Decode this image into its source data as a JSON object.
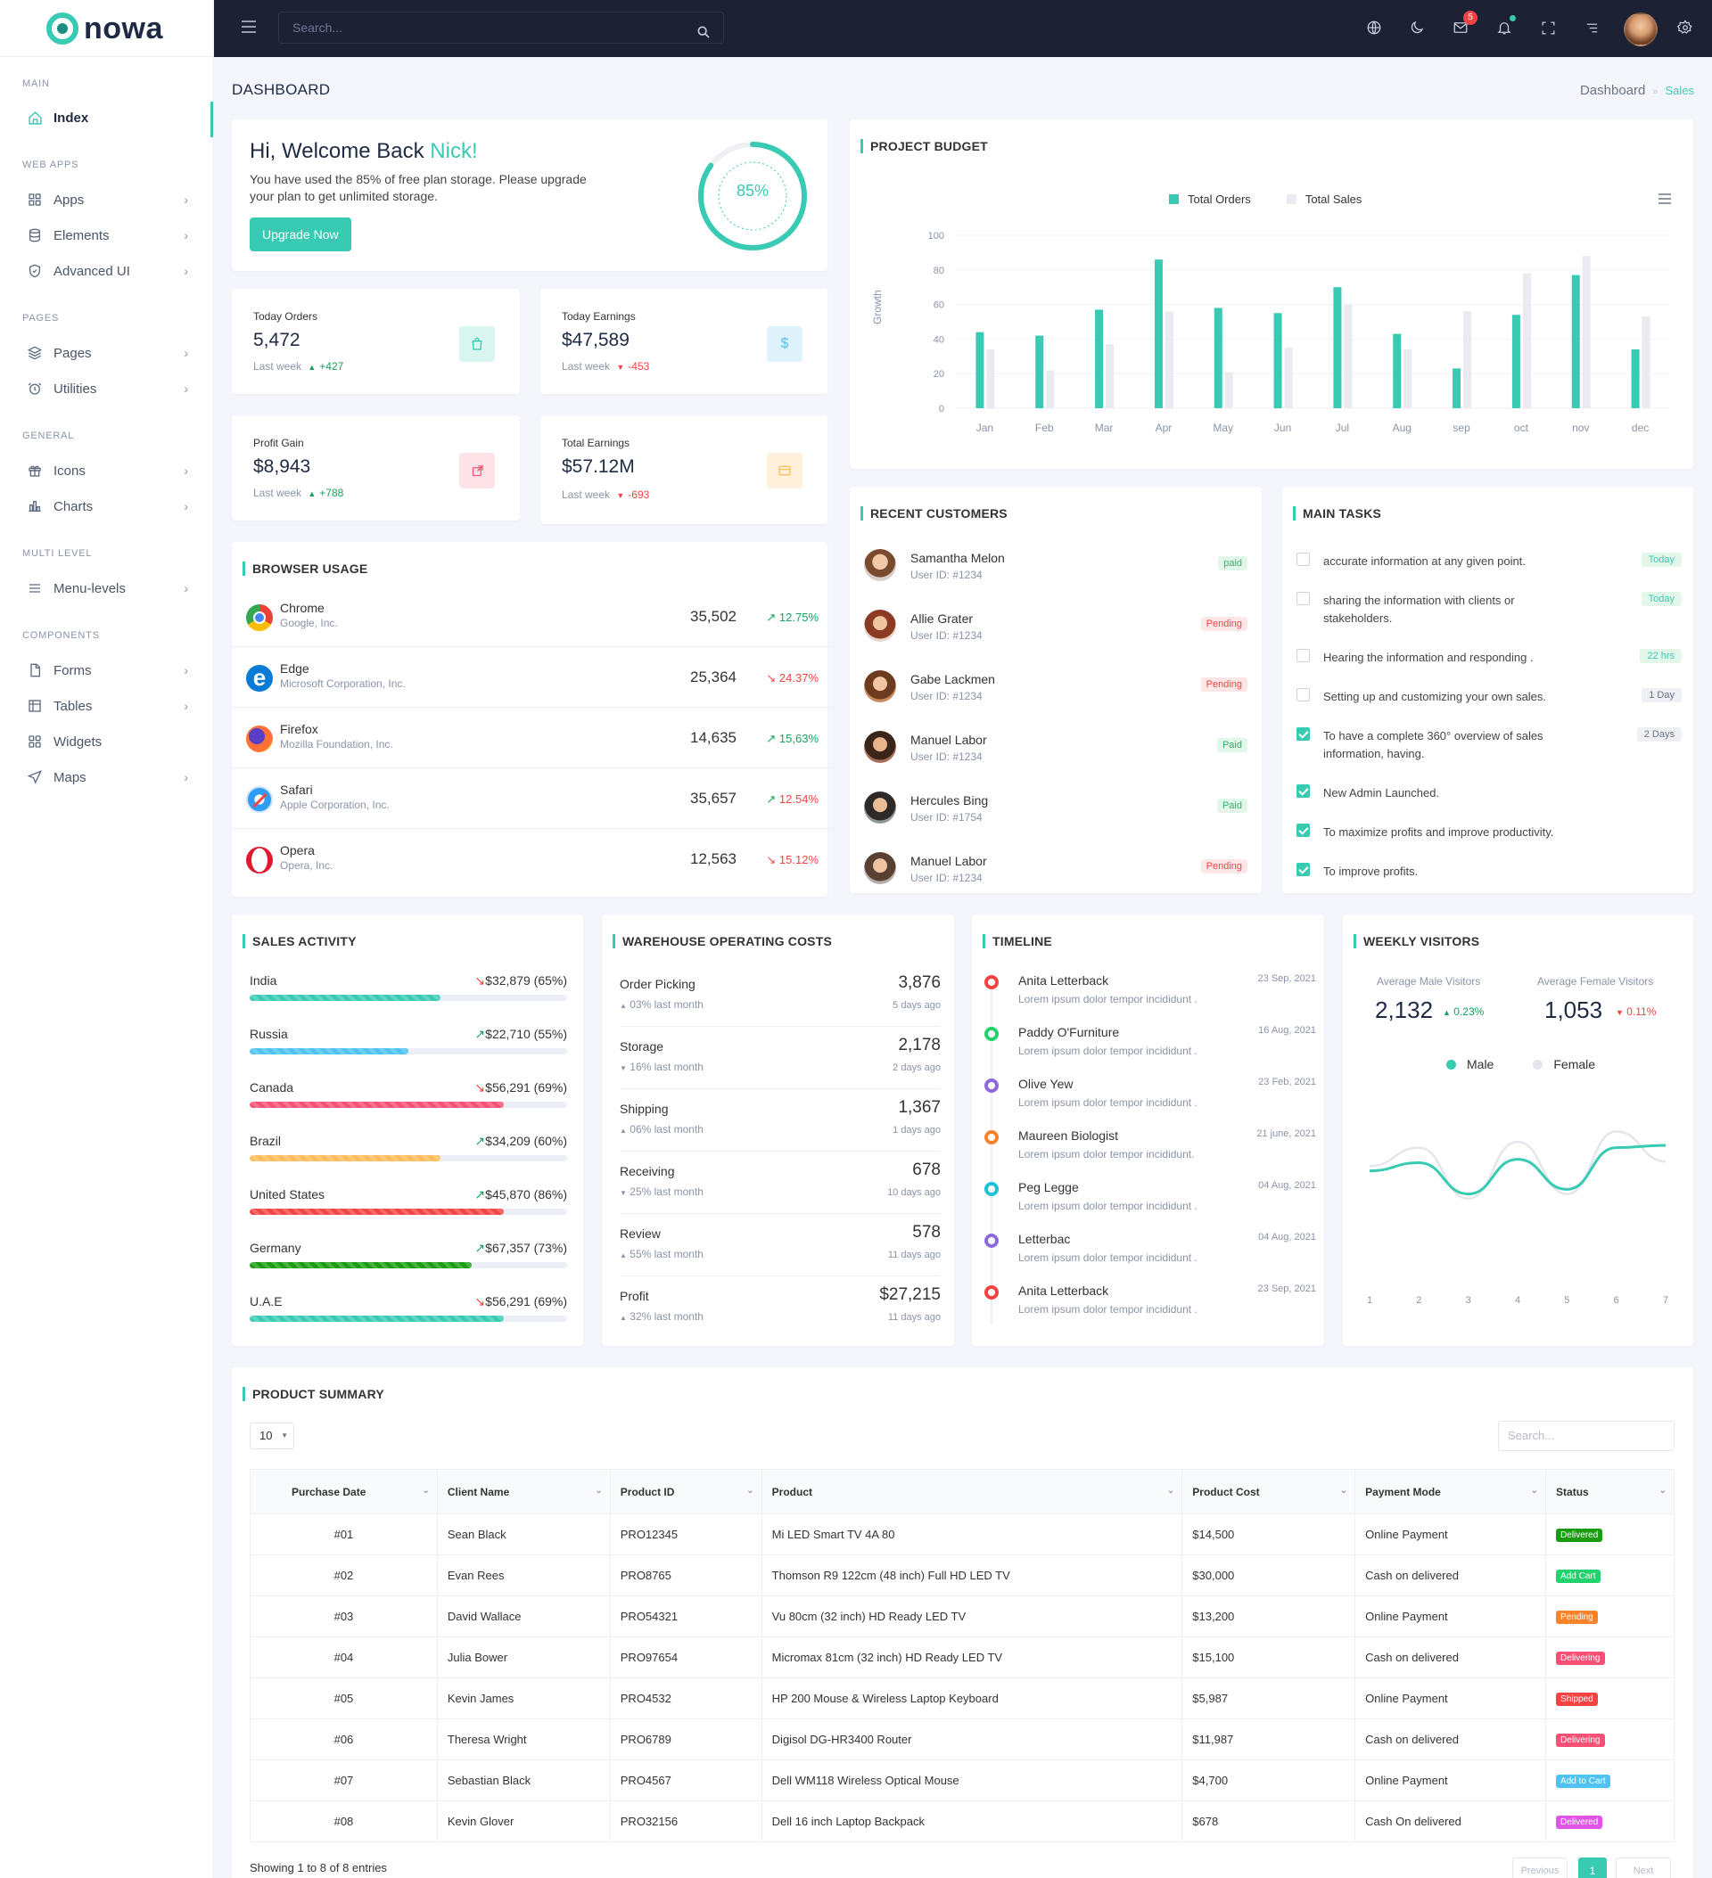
{
  "brand": {
    "name": "nowa",
    "accent": "#38cab3"
  },
  "header": {
    "search_placeholder": "Search...",
    "mail_badge": "5"
  },
  "sidebar": {
    "groups": {
      "main": "MAIN",
      "webapps": "WEB APPS",
      "pages": "PAGES",
      "general": "GENERAL",
      "multilevel": "MULTI LEVEL",
      "components": "COMPONENTS"
    },
    "items": {
      "index": "Index",
      "apps": "Apps",
      "elements": "Elements",
      "advanced": "Advanced UI",
      "pages": "Pages",
      "utilities": "Utilities",
      "icons": "Icons",
      "charts": "Charts",
      "menu": "Menu-levels",
      "forms": "Forms",
      "tables": "Tables",
      "widgets": "Widgets",
      "maps": "Maps"
    }
  },
  "page": {
    "title": "DASHBOARD",
    "crumb_parent": "Dashboard",
    "crumb_current": "Sales"
  },
  "welcome": {
    "greeting": "Hi, Welcome Back ",
    "name": "Nick!",
    "text": "You have used the 85% of free plan storage. Please upgrade your plan to get unlimited storage.",
    "button": "Upgrade Now",
    "percent_label": "85%",
    "percent": 0.85
  },
  "stats": [
    {
      "label": "Today Orders",
      "value": "5,472",
      "sub": "Last week",
      "delta": "+427",
      "dir": "up"
    },
    {
      "label": "Today Earnings",
      "value": "$47,589",
      "sub": "Last week",
      "delta": "-453",
      "dir": "down"
    },
    {
      "label": "Profit Gain",
      "value": "$8,943",
      "sub": "Last week",
      "delta": "+788",
      "dir": "up"
    },
    {
      "label": "Total Earnings",
      "value": "$57.12M",
      "sub": "Last week",
      "delta": "-693",
      "dir": "down"
    }
  ],
  "budget": {
    "title": "PROJECT BUDGET",
    "legend": [
      "Total Orders",
      "Total Sales"
    ],
    "ylabel": "Growth",
    "chart_data": {
      "type": "bar",
      "categories": [
        "Jan",
        "Feb",
        "Mar",
        "Apr",
        "May",
        "Jun",
        "Jul",
        "Aug",
        "sep",
        "oct",
        "nov",
        "dec"
      ],
      "ylim": [
        0,
        100
      ],
      "yticks": [
        0,
        20,
        40,
        60,
        80,
        100
      ],
      "series": [
        {
          "name": "Total Orders",
          "color": "#38cab3",
          "values": [
            44,
            42,
            57,
            86,
            58,
            55,
            70,
            43,
            23,
            54,
            77,
            34
          ]
        },
        {
          "name": "Total Sales",
          "color": "#e9ebf0",
          "values": [
            34,
            22,
            37,
            56,
            21,
            35,
            60,
            34,
            56,
            78,
            88,
            53
          ]
        }
      ]
    }
  },
  "browser": {
    "title": "BROWSER USAGE",
    "rows": [
      {
        "name": "Chrome",
        "company": "Google, Inc.",
        "value": "35,502",
        "pct": "12.75%",
        "dir": "up"
      },
      {
        "name": "Edge",
        "company": "Microsoft Corporation, Inc.",
        "value": "25,364",
        "pct": "24.37%",
        "dir": "down"
      },
      {
        "name": "Firefox",
        "company": "Mozilla Foundation, Inc.",
        "value": "14,635",
        "pct": "15,63%",
        "dir": "up"
      },
      {
        "name": "Safari",
        "company": "Apple Corporation, Inc.",
        "value": "35,657",
        "pct": "12.54%",
        "dir": "up"
      },
      {
        "name": "Opera",
        "company": "Opera, Inc.",
        "value": "12,563",
        "pct": "15.12%",
        "dir": "down"
      }
    ]
  },
  "customers": {
    "title": "RECENT CUSTOMERS",
    "rows": [
      {
        "name": "Samantha Melon",
        "id": "User ID: #1234",
        "status": "paid"
      },
      {
        "name": "Allie Grater",
        "id": "User ID: #1234",
        "status": "Pending"
      },
      {
        "name": "Gabe Lackmen",
        "id": "User ID: #1234",
        "status": "Pending"
      },
      {
        "name": "Manuel Labor",
        "id": "User ID: #1234",
        "status": "Paid"
      },
      {
        "name": "Hercules Bing",
        "id": "User ID: #1754",
        "status": "Paid"
      },
      {
        "name": "Manuel Labor",
        "id": "User ID: #1234",
        "status": "Pending"
      }
    ]
  },
  "tasks": {
    "title": "MAIN TASKS",
    "rows": [
      {
        "text": "accurate information at any given point.",
        "badge": "Today",
        "checked": false
      },
      {
        "text": "sharing the information with clients or stakeholders.",
        "badge": "Today",
        "checked": false
      },
      {
        "text": "Hearing the information and responding .",
        "badge": "22 hrs",
        "checked": false
      },
      {
        "text": "Setting up and customizing your own sales.",
        "badge": "1 Day",
        "checked": false
      },
      {
        "text": "To have a complete 360° overview of sales information, having.",
        "badge": "2 Days",
        "checked": true
      },
      {
        "text": "New Admin Launched.",
        "badge": "",
        "checked": true
      },
      {
        "text": "To maximize profits and improve productivity.",
        "badge": "",
        "checked": true
      },
      {
        "text": "To improve profits.",
        "badge": "",
        "checked": true
      }
    ]
  },
  "sales": {
    "title": "SALES ACTIVITY",
    "rows": [
      {
        "country": "India",
        "value": "$32,879 (65%)",
        "percent": 0.6,
        "color": "#38cab3",
        "dir": "down"
      },
      {
        "country": "Russia",
        "value": "$22,710 (55%)",
        "percent": 0.5,
        "color": "#4ec2f0",
        "dir": "up"
      },
      {
        "country": "Canada",
        "value": "$56,291 (69%)",
        "percent": 0.8,
        "color": "#f74f75",
        "dir": "down"
      },
      {
        "country": "Brazil",
        "value": "$34,209 (60%)",
        "percent": 0.6,
        "color": "#ffbd5a",
        "dir": "up"
      },
      {
        "country": "United States",
        "value": "$45,870 (86%)",
        "percent": 0.8,
        "color": "#f34343",
        "dir": "up"
      },
      {
        "country": "Germany",
        "value": "$67,357 (73%)",
        "percent": 0.7,
        "color": "#1a9c11",
        "dir": "up"
      },
      {
        "country": "U.A.E",
        "value": "$56,291 (69%)",
        "percent": 0.8,
        "color": "#38cab3",
        "dir": "down"
      }
    ]
  },
  "warehouse": {
    "title": "WAREHOUSE OPERATING COSTS",
    "rows": [
      {
        "name": "Order Picking",
        "change": "03% last month",
        "dir": "up",
        "value": "3,876",
        "date": "5 days ago"
      },
      {
        "name": "Storage",
        "change": "16% last month",
        "dir": "down",
        "value": "2,178",
        "date": "2 days ago"
      },
      {
        "name": "Shipping",
        "change": "06% last month",
        "dir": "up",
        "value": "1,367",
        "date": "1 days ago"
      },
      {
        "name": "Receiving",
        "change": "25% last month",
        "dir": "down",
        "value": "678",
        "date": "10 days ago"
      },
      {
        "name": "Review",
        "change": "55% last month",
        "dir": "up",
        "value": "578",
        "date": "11 days ago"
      },
      {
        "name": "Profit",
        "change": "32% last month",
        "dir": "up",
        "value": "$27,215",
        "date": "11 days ago"
      }
    ]
  },
  "timeline": {
    "title": "TIMELINE",
    "rows": [
      {
        "name": "Anita Letterback",
        "text": "Lorem ipsum dolor tempor incididunt .",
        "date": "23 Sep, 2021",
        "color": "#f34343"
      },
      {
        "name": "Paddy O'Furniture",
        "text": "Lorem ipsum dolor tempor incididunt .",
        "date": "16 Aug, 2021",
        "color": "#24d26d"
      },
      {
        "name": "Olive Yew",
        "text": "Lorem ipsum dolor tempor incididunt .",
        "date": "23 Feb, 2021",
        "color": "#8e6ad9"
      },
      {
        "name": "Maureen Biologist",
        "text": "Lorem ipsum dolor tempor incididunt.",
        "date": "21 june, 2021",
        "color": "#f7832b"
      },
      {
        "name": "Peg Legge",
        "text": "Lorem ipsum dolor tempor incididunt .",
        "date": "04 Aug, 2021",
        "color": "#20c2d4"
      },
      {
        "name": "Letterbac",
        "text": "Lorem ipsum dolor tempor incididunt .",
        "date": "04 Aug, 2021",
        "color": "#8e6ad9"
      },
      {
        "name": "Anita Letterback",
        "text": "Lorem ipsum dolor tempor incididunt .",
        "date": "23 Sep, 2021",
        "color": "#f34343"
      }
    ]
  },
  "visitors": {
    "title": "WEEKLY VISITORS",
    "male_label": "Average Male Visitors",
    "male_value": "2,132",
    "male_delta": "0.23%",
    "female_label": "Average Female Visitors",
    "female_value": "1,053",
    "female_delta": "0.11%",
    "legend": [
      "Male",
      "Female"
    ],
    "chart_data": {
      "type": "line",
      "x": [
        1,
        2,
        3,
        4,
        5,
        6,
        7
      ],
      "series": [
        {
          "name": "Male",
          "color": "#38cab3",
          "values": [
            48,
            55,
            28,
            58,
            32,
            68,
            70
          ]
        },
        {
          "name": "Female",
          "color": "#e4e6ec",
          "values": [
            52,
            68,
            24,
            73,
            28,
            82,
            56
          ]
        }
      ]
    }
  },
  "products": {
    "title": "PRODUCT SUMMARY",
    "page_size": "10",
    "search_placeholder": "Search...",
    "columns": [
      "Purchase Date",
      "Client Name",
      "Product ID",
      "Product",
      "Product Cost",
      "Payment Mode",
      "Status"
    ],
    "rows": [
      [
        "#01",
        "Sean Black",
        "PRO12345",
        "Mi LED Smart TV 4A 80",
        "$14,500",
        "Online Payment",
        "Delivered"
      ],
      [
        "#02",
        "Evan Rees",
        "PRO8765",
        "Thomson R9 122cm (48 inch) Full HD LED TV",
        "$30,000",
        "Cash on delivered",
        "Add Cart"
      ],
      [
        "#03",
        "David Wallace",
        "PRO54321",
        "Vu 80cm (32 inch) HD Ready LED TV",
        "$13,200",
        "Online Payment",
        "Pending"
      ],
      [
        "#04",
        "Julia Bower",
        "PRO97654",
        "Micromax 81cm (32 inch) HD Ready LED TV",
        "$15,100",
        "Cash on delivered",
        "Delivering"
      ],
      [
        "#05",
        "Kevin James",
        "PRO4532",
        "HP 200 Mouse & Wireless Laptop Keyboard",
        "$5,987",
        "Online Payment",
        "Shipped"
      ],
      [
        "#06",
        "Theresa Wright",
        "PRO6789",
        "Digisol DG-HR3400 Router",
        "$11,987",
        "Cash on delivered",
        "Delivering"
      ],
      [
        "#07",
        "Sebastian Black",
        "PRO4567",
        "Dell WM118 Wireless Optical Mouse",
        "$4,700",
        "Online Payment",
        "Add to Cart"
      ],
      [
        "#08",
        "Kevin Glover",
        "PRO32156",
        "Dell 16 inch Laptop Backpack",
        "$678",
        "Cash On delivered",
        "Delivered"
      ]
    ],
    "status_colors": [
      "#1a9c11",
      "#24d26d",
      "#f7832b",
      "#f74f75",
      "#f34343",
      "#f74f75",
      "#4ec2f0",
      "#e055e8"
    ],
    "footer": "Showing 1 to 8 of 8 entries",
    "pagination": [
      "Previous",
      "1",
      "Next"
    ]
  }
}
